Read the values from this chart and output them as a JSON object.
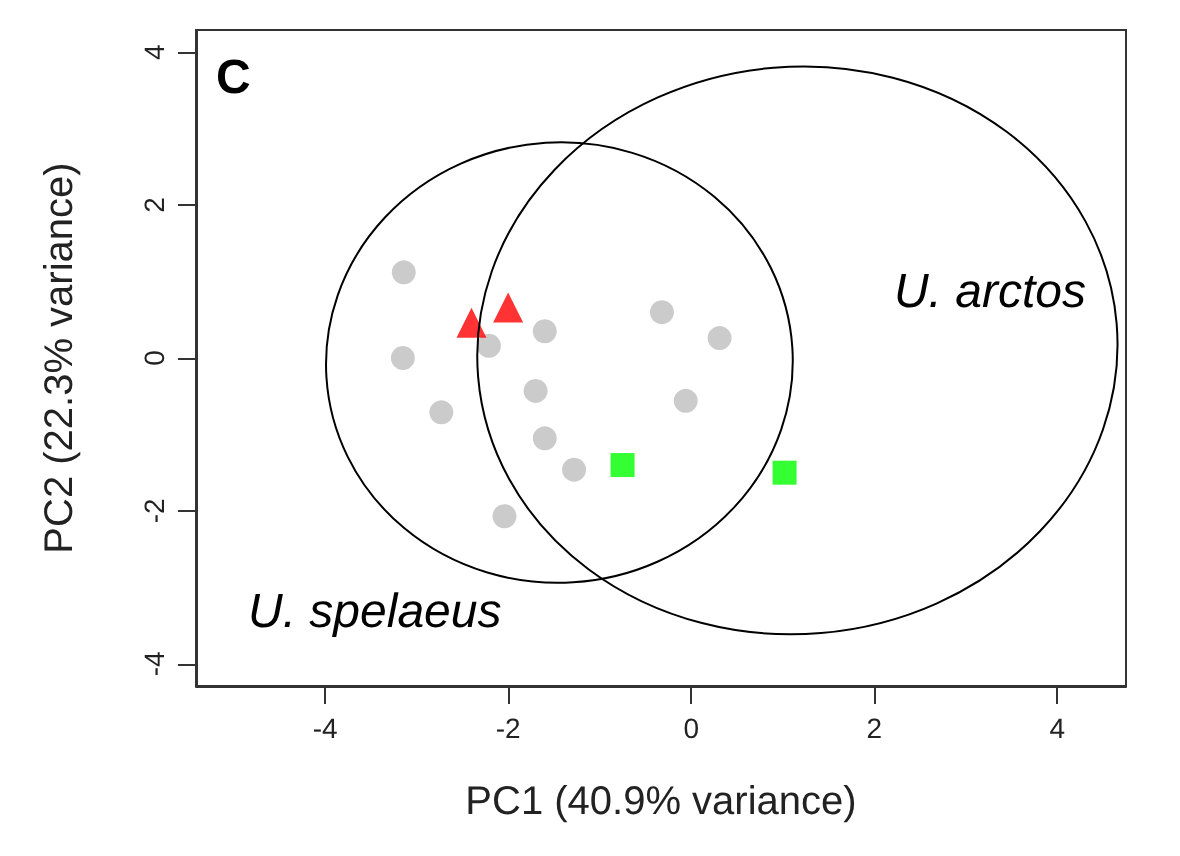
{
  "chart_data": {
    "type": "scatter",
    "xlabel": "PC1 (40.9% variance)",
    "ylabel": "PC2 (22.3% variance)",
    "xlim": [
      -5.41,
      4.75
    ],
    "ylim": [
      -4.29,
      4.29
    ],
    "xticks": [
      -4,
      -2,
      0,
      2,
      4
    ],
    "yticks": [
      -4,
      -2,
      0,
      2,
      4
    ],
    "grid": false,
    "annotations": [
      "C",
      "U. arctos",
      "U. spelaeus"
    ],
    "series": [
      {
        "marker": "circle",
        "color": "#bebebe",
        "x": [
          -3.14,
          -3.15,
          -2.73,
          -2.21,
          -1.6,
          -1.7,
          -1.6,
          -1.28,
          -2.04,
          -0.32,
          0.31,
          -0.06
        ],
        "values": [
          1.12,
          0.0,
          -0.71,
          0.16,
          0.35,
          -0.43,
          -1.05,
          -1.46,
          -2.07,
          0.6,
          0.26,
          -0.56
        ]
      },
      {
        "marker": "triangle",
        "color": "#ff0000",
        "x": [
          -2.4,
          -2.0
        ],
        "values": [
          0.46,
          0.66
        ]
      },
      {
        "marker": "square",
        "color": "#00ff00",
        "x": [
          -0.75,
          1.02
        ],
        "values": [
          -1.4,
          -1.5
        ]
      }
    ]
  }
}
